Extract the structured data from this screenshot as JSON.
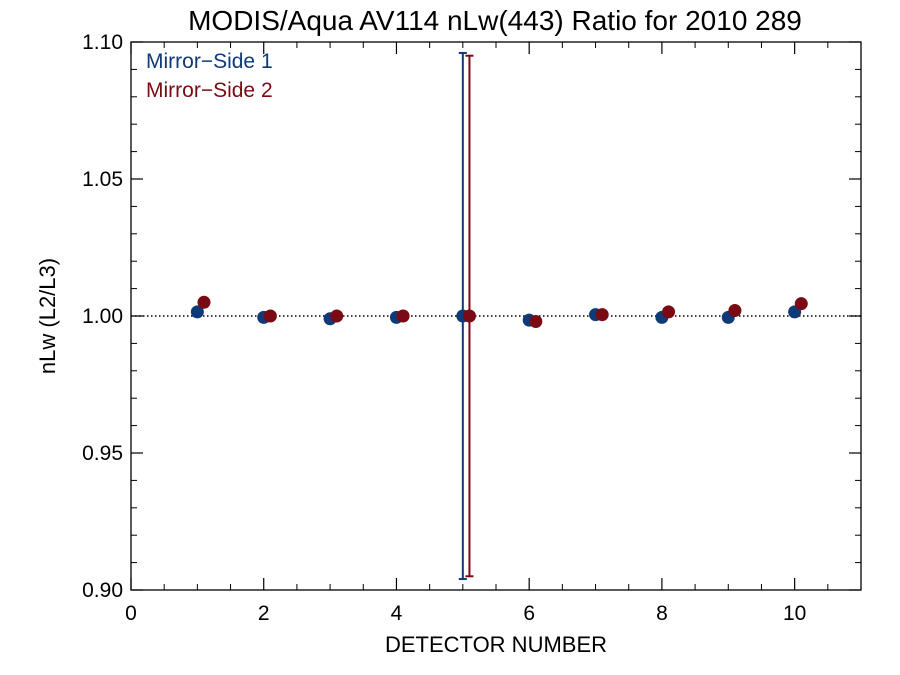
{
  "chart_data": {
    "type": "scatter",
    "title": "MODIS/Aqua AV114 nLw(443) Ratio for 2010 289",
    "xlabel": "DETECTOR NUMBER",
    "ylabel": "nLw (L2/L3)",
    "xlim": [
      0,
      11
    ],
    "ylim": [
      0.9,
      1.1
    ],
    "xticks": [
      0,
      2,
      4,
      6,
      8,
      10
    ],
    "xtick_labels": [
      "0",
      "2",
      "4",
      "6",
      "8",
      "10"
    ],
    "yticks": [
      0.9,
      0.95,
      1.0,
      1.05,
      1.1
    ],
    "ytick_labels": [
      "0.90",
      "0.95",
      "1.00",
      "1.05",
      "1.10"
    ],
    "reference_line": {
      "y": 1.0,
      "style": "dotted"
    },
    "legend_position": "top-left",
    "grid": false,
    "series": [
      {
        "name": "Mirror−Side 1",
        "color": "#0f3a78",
        "x": [
          1,
          2,
          3,
          4,
          5,
          6,
          7,
          8,
          9,
          10
        ],
        "y": [
          1.0015,
          0.9995,
          0.999,
          0.9995,
          1.0,
          0.9985,
          1.0005,
          0.9995,
          0.9995,
          1.0015
        ],
        "error_bar": {
          "x": 5,
          "low": 0.904,
          "high": 1.096
        }
      },
      {
        "name": "Mirror−Side 2",
        "color": "#7a0a14",
        "x": [
          1.1,
          2.1,
          3.1,
          4.1,
          5.1,
          6.1,
          7.1,
          8.1,
          9.1,
          10.1
        ],
        "y": [
          1.005,
          1.0,
          1.0,
          1.0,
          1.0,
          0.998,
          1.0005,
          1.0015,
          1.002,
          1.0045
        ],
        "error_bar": {
          "x": 5.1,
          "low": 0.905,
          "high": 1.095
        }
      }
    ]
  }
}
